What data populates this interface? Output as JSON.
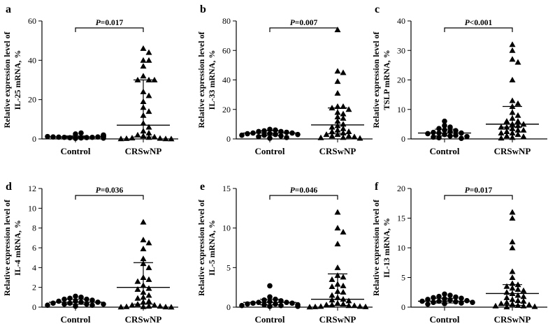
{
  "chart_data": [
    {
      "panel": "a",
      "type": "scatter",
      "categories": [
        "Control",
        "CRSwNP"
      ],
      "ylabel": [
        "Relative expression level of",
        "IL-25 mRNA, %"
      ],
      "ylim": [
        0,
        60
      ],
      "yticks": [
        0,
        20,
        40,
        60
      ],
      "pvalue": "P=0.017",
      "series": [
        {
          "name": "Control",
          "marker": "circle",
          "median": 1.0,
          "iqr": [
            0.7,
            1.5
          ],
          "values": [
            0.3,
            0.5,
            0.6,
            0.7,
            0.8,
            0.8,
            0.9,
            1.0,
            1.0,
            1.1,
            1.2,
            1.3,
            1.5,
            1.8,
            2.0,
            2.5,
            3.0,
            0.4
          ]
        },
        {
          "name": "CRSwNP",
          "marker": "triangle",
          "median": 7.0,
          "iqr": [
            1.0,
            30.0
          ],
          "values": [
            46,
            44,
            40,
            40,
            37,
            32,
            30,
            30,
            30,
            24,
            22,
            19,
            16,
            14,
            12,
            8,
            6,
            4,
            3,
            2,
            1.5,
            1,
            0.8,
            0.5,
            0.3,
            0.2,
            0.1,
            0.1,
            0.05
          ]
        }
      ]
    },
    {
      "panel": "b",
      "type": "scatter",
      "categories": [
        "Control",
        "CRSwNP"
      ],
      "ylabel": [
        "Relative expression level of",
        "IL-33 mRNA, %"
      ],
      "ylim": [
        0,
        80
      ],
      "yticks": [
        0,
        20,
        40,
        60,
        80
      ],
      "pvalue": "P=0.007",
      "series": [
        {
          "name": "Control",
          "marker": "circle",
          "median": 4.0,
          "iqr": [
            2.5,
            5.5
          ],
          "values": [
            6.5,
            6.0,
            5.5,
            5.0,
            5.0,
            4.5,
            4.0,
            4.0,
            3.5,
            3.5,
            3.0,
            3.0,
            2.5,
            2.5,
            2.0,
            1.5,
            1.0,
            0.5
          ]
        },
        {
          "name": "CRSwNP",
          "marker": "triangle",
          "median": 9.5,
          "iqr": [
            3.5,
            21.0
          ],
          "values": [
            74,
            46,
            45,
            39,
            31,
            22,
            22,
            21,
            20,
            18,
            17,
            15,
            14,
            12,
            10,
            9,
            8,
            7,
            6,
            5,
            5,
            4,
            3,
            3,
            2,
            2,
            1.5,
            1,
            0.8,
            0.5
          ]
        }
      ]
    },
    {
      "panel": "c",
      "type": "scatter",
      "categories": [
        "Control",
        "CRSwNP"
      ],
      "ylabel": [
        "Relative expression level of",
        "TSLP mRNA, %"
      ],
      "ylim": [
        0,
        40
      ],
      "yticks": [
        0,
        10,
        20,
        30,
        40
      ],
      "pvalue": "P<0.001",
      "series": [
        {
          "name": "Control",
          "marker": "circle",
          "median": 2.0,
          "iqr": [
            1.0,
            3.3
          ],
          "values": [
            6.0,
            4.5,
            4.0,
            3.5,
            3.0,
            2.8,
            2.5,
            2.2,
            2.0,
            2.0,
            1.8,
            1.5,
            1.2,
            1.0,
            0.8,
            0.6,
            0.4,
            0.2
          ]
        },
        {
          "name": "CRSwNP",
          "marker": "triangle",
          "median": 5.0,
          "iqr": [
            4.0,
            11.0
          ],
          "values": [
            32,
            30,
            27,
            26,
            20,
            13,
            12,
            11,
            9,
            8,
            7,
            6,
            6,
            5,
            5,
            4.5,
            4,
            4,
            3.5,
            3,
            3,
            2.5,
            2,
            2,
            1.5,
            1,
            0.8,
            0.5,
            0.3
          ]
        }
      ]
    },
    {
      "panel": "d",
      "type": "scatter",
      "categories": [
        "Control",
        "CRSwNP"
      ],
      "ylabel": [
        "Relative expression level of",
        "IL-4 mRNA, %"
      ],
      "ylim": [
        0,
        12
      ],
      "yticks": [
        0,
        2,
        4,
        6,
        8,
        10,
        12
      ],
      "pvalue": "P=0.036",
      "series": [
        {
          "name": "Control",
          "marker": "circle",
          "median": 0.5,
          "iqr": [
            0.3,
            0.8
          ],
          "values": [
            1.1,
            1.0,
            0.9,
            0.8,
            0.8,
            0.7,
            0.6,
            0.6,
            0.5,
            0.5,
            0.4,
            0.4,
            0.3,
            0.3,
            0.3,
            0.2,
            0.2,
            0.1
          ]
        },
        {
          "name": "CRSwNP",
          "marker": "triangle",
          "median": 2.0,
          "iqr": [
            0.3,
            4.5
          ],
          "values": [
            8.6,
            6.8,
            6.5,
            5.9,
            4.9,
            4.4,
            4.0,
            3.0,
            2.8,
            2.6,
            2.2,
            1.9,
            1.8,
            1.5,
            1.2,
            1.0,
            0.9,
            0.6,
            0.5,
            0.3,
            0.2,
            0.2,
            0.1,
            0.1,
            0.05,
            0.05,
            0.03,
            0.02,
            0.01
          ]
        }
      ]
    },
    {
      "panel": "e",
      "type": "scatter",
      "categories": [
        "Control",
        "CRSwNP"
      ],
      "ylabel": [
        "Relative expression level of",
        "IL-5 mRNA, %"
      ],
      "ylim": [
        0,
        15
      ],
      "yticks": [
        0,
        5,
        10,
        15
      ],
      "pvalue": "P=0.046",
      "series": [
        {
          "name": "Control",
          "marker": "circle",
          "median": 0.6,
          "iqr": [
            0.3,
            1.0
          ],
          "values": [
            2.7,
            1.3,
            1.0,
            0.9,
            0.8,
            0.7,
            0.6,
            0.6,
            0.5,
            0.5,
            0.4,
            0.4,
            0.3,
            0.3,
            0.2,
            0.2,
            0.1,
            0.1
          ]
        },
        {
          "name": "CRSwNP",
          "marker": "triangle",
          "median": 1.0,
          "iqr": [
            0.2,
            4.2
          ],
          "values": [
            12,
            10,
            9.5,
            8,
            5.0,
            4.0,
            3.8,
            3.5,
            2.9,
            2.7,
            2.6,
            2.0,
            1.9,
            1.5,
            1.2,
            1.0,
            0.9,
            0.8,
            0.5,
            0.4,
            0.3,
            0.3,
            0.2,
            0.2,
            0.1,
            0.1,
            0.05,
            0.05,
            0.02
          ]
        }
      ]
    },
    {
      "panel": "f",
      "type": "scatter",
      "categories": [
        "Control",
        "CRSwNP"
      ],
      "ylabel": [
        "Relative expression level of",
        "IL-13 mRNA, %"
      ],
      "ylim": [
        0,
        20
      ],
      "yticks": [
        0,
        5,
        10,
        15,
        20
      ],
      "pvalue": "P=0.017",
      "series": [
        {
          "name": "Control",
          "marker": "circle",
          "median": 1.0,
          "iqr": [
            0.7,
            1.5
          ],
          "values": [
            2.2,
            2.0,
            1.8,
            1.7,
            1.6,
            1.5,
            1.4,
            1.3,
            1.2,
            1.1,
            1.0,
            1.0,
            0.9,
            0.8,
            0.8,
            0.7,
            0.6,
            0.5
          ]
        },
        {
          "name": "CRSwNP",
          "marker": "triangle",
          "median": 2.3,
          "iqr": [
            0.3,
            3.8
          ],
          "values": [
            16,
            15,
            11,
            10,
            6.0,
            5.0,
            4.0,
            3.8,
            3.5,
            3.2,
            3.0,
            2.8,
            2.5,
            2.3,
            2.0,
            1.8,
            1.6,
            1.3,
            1.1,
            1.0,
            0.8,
            0.6,
            0.5,
            0.4,
            0.3,
            0.2,
            0.2,
            0.1,
            0.05
          ]
        }
      ]
    }
  ]
}
